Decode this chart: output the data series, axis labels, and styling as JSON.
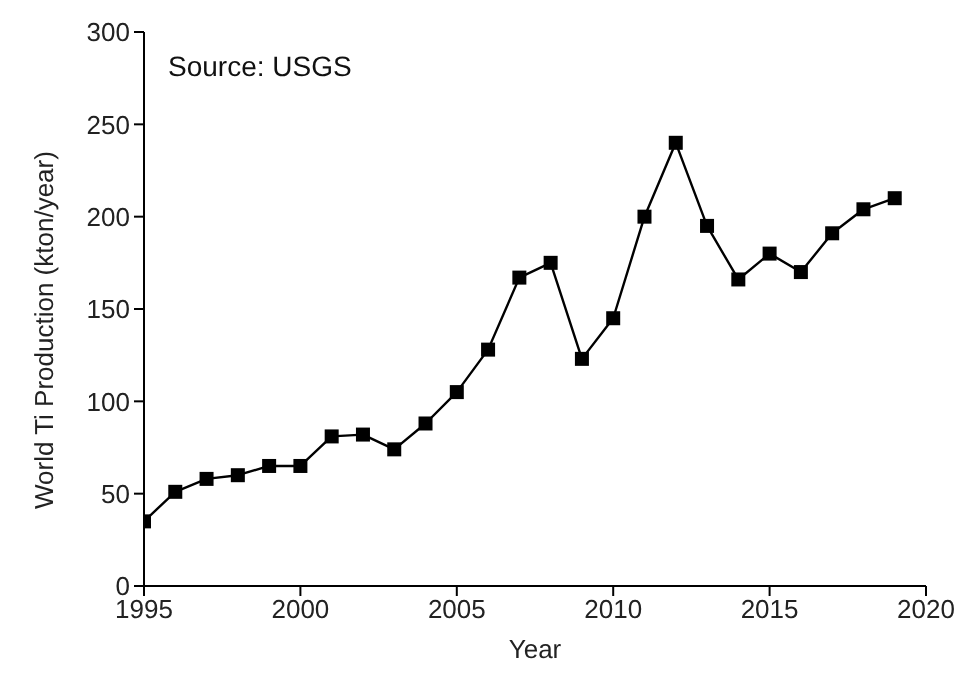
{
  "chart_data": {
    "type": "line",
    "xlabel": "Year",
    "ylabel": "World Ti Production (kton/year)",
    "annotations": [
      "Source: USGS"
    ],
    "x": [
      1995,
      1996,
      1997,
      1998,
      1999,
      2000,
      2001,
      2002,
      2003,
      2004,
      2005,
      2006,
      2007,
      2008,
      2009,
      2010,
      2011,
      2012,
      2013,
      2014,
      2015,
      2016,
      2017,
      2018,
      2019
    ],
    "series": [
      {
        "color": "#000000",
        "values": [
          35,
          51,
          58,
          60,
          65,
          65,
          81,
          82,
          74,
          88,
          105,
          128,
          167,
          175,
          123,
          145,
          200,
          240,
          195,
          166,
          180,
          170,
          191,
          204,
          210
        ]
      }
    ],
    "xlim": [
      1995,
      2020
    ],
    "xticks": [
      1995,
      2000,
      2005,
      2010,
      2015,
      2020
    ],
    "ylim": [
      0,
      300
    ],
    "yticks": [
      0,
      50,
      100,
      150,
      200,
      250,
      300
    ],
    "marker": "square",
    "line_style": "solid"
  }
}
